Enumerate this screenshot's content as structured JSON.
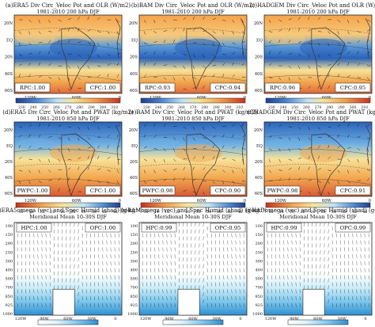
{
  "figure": {
    "colorbar_olr": [
      "230",
      "240",
      "250",
      "260",
      "270",
      "280",
      "290",
      "300",
      "310"
    ],
    "colorbar_pwat": [
      "10",
      "14",
      "18",
      "22",
      "26",
      "30",
      "34",
      "38",
      "42",
      "46"
    ],
    "colorbar_hum": [
      "5",
      "10",
      "12",
      "14",
      "16"
    ],
    "colors": {
      "blue_dark": "#1f4fa3",
      "blue": "#4f8fd6",
      "blue_light": "#b8dff3",
      "yellow": "#f7e39a",
      "orange": "#f2a34b",
      "red": "#d7432e",
      "land": "#ffffff"
    }
  },
  "chart_data": [
    {
      "type": "heatmap",
      "title": "(a)ERA5 Div Circ_Veloc Pot and OLR (W/m2)",
      "subtitle": "1981-2010 200 hPa DJF",
      "yticks": [
        "20N",
        "EQ",
        "20S",
        "40S",
        "60S"
      ],
      "xticks": [
        "120W",
        "60W",
        "0"
      ],
      "index_left": "RPC:1.00",
      "index_right": "CPC:1.00"
    },
    {
      "type": "heatmap",
      "title": "(b)BAM Div Circ_Veloc Pot and OLR (W/m2)",
      "subtitle": "1981-2010 200 hPa DJF",
      "yticks": [
        "20N",
        "EQ",
        "20S",
        "40S",
        "60S"
      ],
      "xticks": [
        "120W",
        "60W",
        "0"
      ],
      "index_left": "RPC:0.93",
      "index_right": "CPC:0.94"
    },
    {
      "type": "heatmap",
      "title": "(c)HADGEM Div Circ_Veloc Pot and OLR (W/m2)",
      "subtitle": "1981-2010 200 hPa DJF",
      "yticks": [
        "20N",
        "EQ",
        "20S",
        "40S",
        "60S"
      ],
      "xticks": [
        "120W",
        "60W",
        "0"
      ],
      "index_left": "RPC:0.96",
      "index_right": "CPC:0.95"
    },
    {
      "type": "heatmap",
      "title": "(d)ERA5 Div Circ_Veloc Pot and PWAT (kg/m2)",
      "subtitle": "1981-2010 850 hPa DJF",
      "yticks": [
        "20N",
        "EQ",
        "20S",
        "40S",
        "60S"
      ],
      "xticks": [
        "120W",
        "60W",
        "0"
      ],
      "index_left": "PWPC:1.00",
      "index_right": "CPC:1.00"
    },
    {
      "type": "heatmap",
      "title": "(e)BAM Div Circ_Veloc Pot and PWAT (kg/m2)",
      "subtitle": "1981-2010 850 hPa DJF",
      "yticks": [
        "20N",
        "EQ",
        "20S",
        "40S",
        "60S"
      ],
      "xticks": [
        "120W",
        "60W",
        "0"
      ],
      "index_left": "PWPC:0.98",
      "index_right": "CPC:0.90"
    },
    {
      "type": "heatmap",
      "title": "(f)HADGEM Div Circ_Veloc Pot and PWAT (kg/m2)",
      "subtitle": "1981-2010 850 hPa DJF",
      "yticks": [
        "20N",
        "EQ",
        "20S",
        "40S",
        "60S"
      ],
      "xticks": [
        "120W",
        "60W",
        "0"
      ],
      "index_left": "PWPC:0.98",
      "index_right": "CPC:0.91"
    },
    {
      "type": "heatmap",
      "title": "(g)ERA5omega (vec) and Spec Humid (shad) (g-kg⁻¹)",
      "subtitle": "Meridional Mean 10-30S DJF",
      "yticks": [
        "100",
        "150",
        "200",
        "250",
        "300",
        "400",
        "500",
        "700",
        "850",
        "925",
        "1000"
      ],
      "xticks": [
        "120W",
        "90W",
        "60W",
        "30W",
        "0"
      ],
      "index_left": "HPC:1.00",
      "index_right": "OPC:1.00"
    },
    {
      "type": "heatmap",
      "title": "(h)BAMomega (vec) and Spec Humid (shad) (g-kg⁻¹)",
      "subtitle": "Meridional Mean 10-30S DJF",
      "yticks": [
        "100",
        "150",
        "200",
        "250",
        "300",
        "400",
        "500",
        "700",
        "850",
        "925",
        "1000"
      ],
      "xticks": [
        "120W",
        "90W",
        "60W",
        "30W",
        "0"
      ],
      "index_left": "HPC:0.99",
      "index_right": "OPC:0.95"
    },
    {
      "type": "heatmap",
      "title": "(i)HADomega (vec) and Spec Humid (shad) (g-kg⁻¹)",
      "subtitle": "Meridional Mean 10-30S DJF",
      "yticks": [
        "100",
        "150",
        "200",
        "250",
        "300",
        "400",
        "500",
        "700",
        "850",
        "925",
        "1000"
      ],
      "xticks": [
        "120W",
        "90W",
        "60W",
        "30W",
        "0"
      ],
      "index_left": "HPC:0.99",
      "index_right": "OPC:0.99"
    }
  ]
}
